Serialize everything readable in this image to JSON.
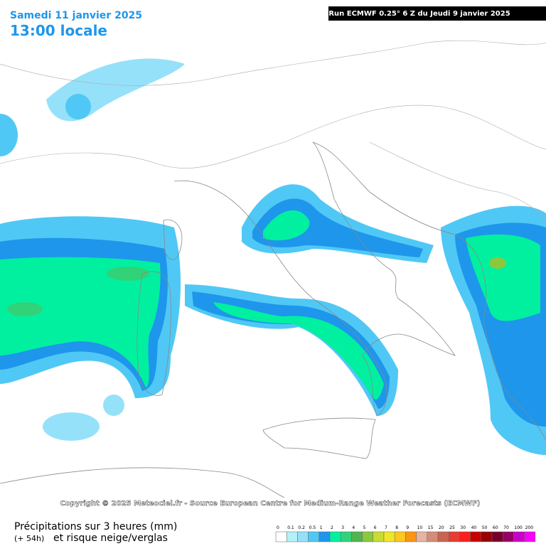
{
  "header": {
    "date": "Samedi 11 janvier 2025",
    "time": "13:00 locale",
    "run": "Run ECMWF 0.25° 6 Z du Jeudi 9 janvier 2025"
  },
  "copyright": "Copyright © 2025 Meteociel.fr - Source European Centre for Medium-Range Weather Forecasts (ECMWF)",
  "legend": {
    "title": "Précipitations sur 3 heures (mm)",
    "lead": "(+ 54h)",
    "subtitle": "et risque neige/verglas",
    "scale": [
      {
        "value": 0,
        "color": "#ffffff"
      },
      {
        "value": 0.1,
        "color": "#b4f0fa"
      },
      {
        "value": 0.2,
        "color": "#96e1fa"
      },
      {
        "value": 0.5,
        "color": "#50c8f5"
      },
      {
        "value": 1,
        "color": "#1e96eb"
      },
      {
        "value": 2,
        "color": "#00f0a0"
      },
      {
        "value": 3,
        "color": "#32d278"
      },
      {
        "value": 4,
        "color": "#50b450"
      },
      {
        "value": 5,
        "color": "#8cc83c"
      },
      {
        "value": 6,
        "color": "#c8dc32"
      },
      {
        "value": 7,
        "color": "#f0e628"
      },
      {
        "value": 8,
        "color": "#fac81e"
      },
      {
        "value": 9,
        "color": "#fa9614"
      },
      {
        "value": 10,
        "color": "#e6b4a0"
      },
      {
        "value": 15,
        "color": "#d28c78"
      },
      {
        "value": 20,
        "color": "#c86450"
      },
      {
        "value": 25,
        "color": "#e63c32"
      },
      {
        "value": 30,
        "color": "#fa1e1e"
      },
      {
        "value": 40,
        "color": "#c80000"
      },
      {
        "value": 50,
        "color": "#960000"
      },
      {
        "value": 60,
        "color": "#780028"
      },
      {
        "value": 70,
        "color": "#960064"
      },
      {
        "value": 100,
        "color": "#c800c8"
      },
      {
        "value": 200,
        "color": "#fa00fa"
      }
    ]
  }
}
